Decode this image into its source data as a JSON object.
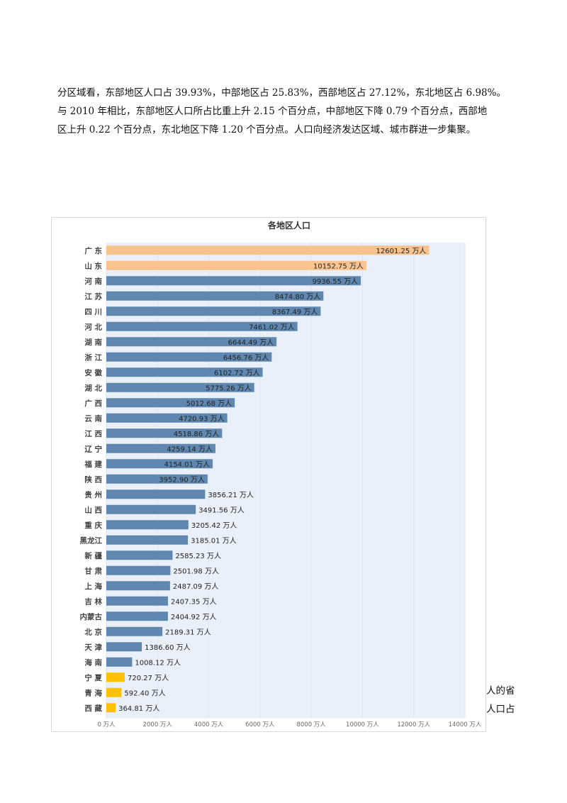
{
  "paragraph": {
    "line1": "分区域看，东部地区人口占 39.93%，中部地区占 25.83%，西部地区占 27.12%，东北地区占 6.98%。",
    "line2": "与 2010 年相比，东部地区人口所占比重上升 2.15 个百分点，中部地区下降 0.79 个百分点，西部地",
    "line3": "区上升 0.22 个百分点，东北地区下降 1.20 个百分点。人口向经济发达区域、城市群进一步集聚。"
  },
  "side_text": {
    "line1": "人的省",
    "line2": "人口占"
  },
  "colors": {
    "top": "#F8C38F",
    "mid": "#5F87B0",
    "low": "#FFC000",
    "plot_bg": "#EAF0FA"
  },
  "chart_data": {
    "type": "bar",
    "orientation": "horizontal",
    "title": "各地区人口",
    "unit": "万人",
    "categories": [
      "广 东",
      "山 东",
      "河 南",
      "江 苏",
      "四 川",
      "河 北",
      "湖 南",
      "浙 江",
      "安 徽",
      "湖 北",
      "广 西",
      "云 南",
      "江 西",
      "辽 宁",
      "福 建",
      "陕 西",
      "贵 州",
      "山 西",
      "重 庆",
      "黑龙江",
      "新 疆",
      "甘 肃",
      "上 海",
      "吉 林",
      "内蒙古",
      "北 京",
      "天 津",
      "海 南",
      "宁 夏",
      "青 海",
      "西 藏"
    ],
    "values": [
      12601.25,
      10152.75,
      9936.55,
      8474.8,
      8367.49,
      7461.02,
      6644.49,
      6456.76,
      6102.72,
      5775.26,
      5012.68,
      4720.93,
      4518.86,
      4259.14,
      4154.01,
      3952.9,
      3856.21,
      3491.56,
      3205.42,
      3185.01,
      2585.23,
      2501.98,
      2487.09,
      2407.35,
      2404.92,
      2189.31,
      1386.6,
      1008.12,
      720.27,
      592.4,
      364.81
    ],
    "value_labels": [
      "12601.25 万人",
      "10152.75 万人",
      "9936.55 万人",
      "8474.80 万人",
      "8367.49 万人",
      "7461.02 万人",
      "6644.49 万人",
      "6456.76 万人",
      "6102.72 万人",
      "5775.26 万人",
      "5012.68 万人",
      "4720.93 万人",
      "4518.86 万人",
      "4259.14 万人",
      "4154.01 万人",
      "3952.90 万人",
      "3856.21 万人",
      "3491.56 万人",
      "3205.42 万人",
      "3185.01 万人",
      "2585.23 万人",
      "2501.98 万人",
      "2487.09 万人",
      "2407.35 万人",
      "2404.92 万人",
      "2189.31 万人",
      "1386.60 万人",
      "1008.12 万人",
      "720.27 万人",
      "592.40 万人",
      "364.81 万人"
    ],
    "color_groups": [
      "top",
      "top",
      "mid",
      "mid",
      "mid",
      "mid",
      "mid",
      "mid",
      "mid",
      "mid",
      "mid",
      "mid",
      "mid",
      "mid",
      "mid",
      "mid",
      "mid",
      "mid",
      "mid",
      "mid",
      "mid",
      "mid",
      "mid",
      "mid",
      "mid",
      "mid",
      "mid",
      "mid",
      "low",
      "low",
      "low"
    ],
    "xlim": [
      0,
      14000
    ],
    "x_ticks": [
      0,
      2000,
      4000,
      6000,
      8000,
      10000,
      12000,
      14000
    ],
    "x_tick_labels": [
      "0 万人",
      "2000 万人",
      "4000 万人",
      "6000 万人",
      "8000 万人",
      "10000 万人",
      "12000 万人",
      "14000 万人"
    ]
  }
}
